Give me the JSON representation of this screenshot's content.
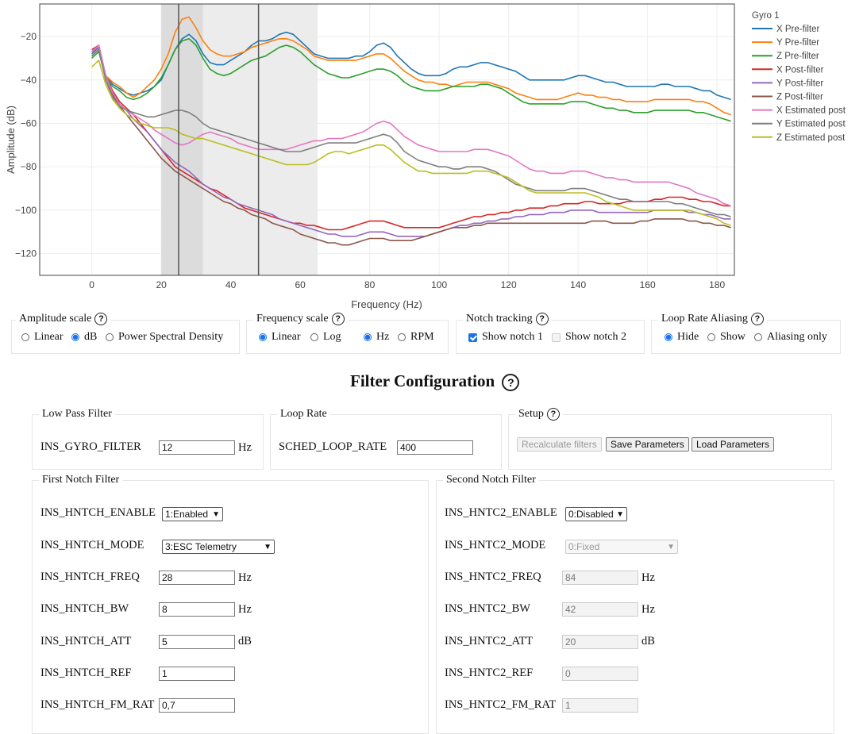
{
  "chart_data": {
    "type": "line",
    "xlabel": "Frequency (Hz)",
    "ylabel": "Amplitude (dB)",
    "xlim": [
      -15,
      185
    ],
    "ylim": [
      -130,
      -5
    ],
    "xticks": [
      0,
      20,
      40,
      60,
      80,
      100,
      120,
      140,
      160,
      180
    ],
    "yticks": [
      -120,
      -100,
      -80,
      -60,
      -40,
      -20
    ],
    "grid": true,
    "legend_title": "Gyro 1",
    "legend_position": "right",
    "shaded_bands": [
      {
        "x0": 20,
        "x1": 32,
        "shade": "dark"
      },
      {
        "x0": 32,
        "x1": 65,
        "shade": "light"
      }
    ],
    "vertical_lines": [
      25,
      48
    ],
    "x": [
      0,
      2,
      4,
      6,
      8,
      10,
      12,
      14,
      16,
      18,
      20,
      22,
      24,
      26,
      28,
      30,
      32,
      34,
      36,
      38,
      40,
      42,
      44,
      46,
      48,
      50,
      52,
      54,
      56,
      58,
      60,
      62,
      64,
      66,
      68,
      70,
      72,
      74,
      76,
      78,
      80,
      82,
      84,
      86,
      88,
      90,
      92,
      94,
      96,
      98,
      100,
      102,
      104,
      106,
      108,
      110,
      112,
      114,
      116,
      118,
      120,
      122,
      124,
      126,
      128,
      130,
      132,
      134,
      136,
      138,
      140,
      142,
      144,
      146,
      148,
      150,
      152,
      154,
      156,
      158,
      160,
      162,
      164,
      166,
      168,
      170,
      172,
      174,
      176,
      178,
      180,
      182,
      184
    ],
    "series": [
      {
        "name": "X Pre-filter",
        "color": "#1f77b4",
        "values": [
          -28,
          -25,
          -38,
          -42,
          -44,
          -46,
          -47,
          -46,
          -45,
          -43,
          -40,
          -33,
          -26,
          -21,
          -19,
          -22,
          -28,
          -32,
          -33,
          -33,
          -31,
          -29,
          -27,
          -24,
          -22,
          -22,
          -21,
          -19,
          -18,
          -19,
          -22,
          -25,
          -28,
          -29,
          -30,
          -30,
          -30,
          -30,
          -29,
          -29,
          -27,
          -24,
          -23,
          -25,
          -29,
          -32,
          -35,
          -37,
          -38,
          -38,
          -38,
          -37,
          -35,
          -34,
          -34,
          -33,
          -32,
          -32,
          -33,
          -34,
          -35,
          -36,
          -38,
          -40,
          -40,
          -40,
          -40,
          -40,
          -40,
          -39,
          -38,
          -38,
          -39,
          -40,
          -41,
          -41,
          -42,
          -43,
          -43,
          -43,
          -43,
          -43,
          -42,
          -42,
          -43,
          -43,
          -43,
          -44,
          -45,
          -45,
          -47,
          -48,
          -49
        ]
      },
      {
        "name": "Y Pre-filter",
        "color": "#ff7f0e",
        "values": [
          -29,
          -26,
          -38,
          -41,
          -43,
          -46,
          -48,
          -46,
          -43,
          -40,
          -35,
          -28,
          -18,
          -12,
          -11,
          -16,
          -22,
          -26,
          -28,
          -29,
          -29,
          -28,
          -27,
          -25,
          -24,
          -23,
          -22,
          -21,
          -21,
          -22,
          -24,
          -26,
          -29,
          -30,
          -31,
          -31,
          -31,
          -31,
          -31,
          -30,
          -29,
          -28,
          -28,
          -30,
          -33,
          -36,
          -38,
          -40,
          -41,
          -41,
          -42,
          -42,
          -43,
          -42,
          -41,
          -41,
          -41,
          -41,
          -42,
          -43,
          -44,
          -46,
          -47,
          -48,
          -49,
          -49,
          -49,
          -49,
          -48,
          -47,
          -46,
          -47,
          -47,
          -48,
          -48,
          -49,
          -49,
          -50,
          -50,
          -50,
          -50,
          -49,
          -49,
          -49,
          -49,
          -49,
          -49,
          -50,
          -50,
          -51,
          -53,
          -55,
          -56
        ]
      },
      {
        "name": "Z Pre-filter",
        "color": "#2ca02c",
        "values": [
          -30,
          -27,
          -39,
          -43,
          -45,
          -48,
          -49,
          -48,
          -46,
          -43,
          -39,
          -33,
          -26,
          -22,
          -21,
          -24,
          -30,
          -35,
          -37,
          -38,
          -37,
          -35,
          -33,
          -31,
          -30,
          -29,
          -27,
          -25,
          -24,
          -25,
          -27,
          -30,
          -33,
          -35,
          -37,
          -38,
          -39,
          -39,
          -38,
          -37,
          -36,
          -35,
          -35,
          -36,
          -38,
          -41,
          -43,
          -44,
          -45,
          -45,
          -45,
          -44,
          -43,
          -43,
          -43,
          -43,
          -42,
          -42,
          -43,
          -44,
          -46,
          -48,
          -50,
          -51,
          -51,
          -51,
          -51,
          -51,
          -51,
          -50,
          -50,
          -50,
          -51,
          -52,
          -53,
          -53,
          -54,
          -54,
          -55,
          -55,
          -55,
          -54,
          -54,
          -54,
          -54,
          -54,
          -54,
          -55,
          -55,
          -56,
          -57,
          -58,
          -59
        ]
      },
      {
        "name": "X Post-filter",
        "color": "#d62728",
        "values": [
          -26,
          -24,
          -38,
          -45,
          -50,
          -53,
          -56,
          -60,
          -64,
          -68,
          -72,
          -76,
          -80,
          -82,
          -84,
          -86,
          -88,
          -90,
          -91,
          -93,
          -95,
          -97,
          -99,
          -100,
          -101,
          -102,
          -103,
          -104,
          -105,
          -106,
          -106,
          -107,
          -107,
          -108,
          -109,
          -109,
          -109,
          -108,
          -107,
          -106,
          -105,
          -105,
          -105,
          -106,
          -107,
          -108,
          -108,
          -108,
          -108,
          -108,
          -108,
          -107,
          -106,
          -105,
          -104,
          -103,
          -103,
          -102,
          -102,
          -101,
          -101,
          -100,
          -100,
          -99,
          -99,
          -99,
          -98,
          -98,
          -97,
          -97,
          -97,
          -96,
          -96,
          -97,
          -97,
          -97,
          -97,
          -96,
          -96,
          -96,
          -96,
          -95,
          -95,
          -94,
          -94,
          -94,
          -95,
          -95,
          -96,
          -96,
          -97,
          -98,
          -98
        ]
      },
      {
        "name": "Y Post-filter",
        "color": "#9467bd",
        "values": [
          -27,
          -25,
          -38,
          -46,
          -51,
          -54,
          -58,
          -61,
          -64,
          -68,
          -72,
          -75,
          -78,
          -80,
          -82,
          -85,
          -88,
          -90,
          -92,
          -94,
          -95,
          -97,
          -98,
          -99,
          -100,
          -101,
          -102,
          -104,
          -105,
          -106,
          -107,
          -108,
          -109,
          -110,
          -111,
          -111,
          -112,
          -112,
          -112,
          -111,
          -110,
          -110,
          -110,
          -111,
          -112,
          -112,
          -112,
          -112,
          -112,
          -111,
          -110,
          -109,
          -108,
          -107,
          -107,
          -106,
          -106,
          -105,
          -105,
          -104,
          -104,
          -103,
          -103,
          -102,
          -102,
          -102,
          -101,
          -101,
          -101,
          -100,
          -100,
          -100,
          -100,
          -101,
          -101,
          -101,
          -101,
          -101,
          -101,
          -101,
          -101,
          -100,
          -100,
          -100,
          -100,
          -100,
          -101,
          -101,
          -102,
          -102,
          -103,
          -104,
          -104
        ]
      },
      {
        "name": "Z Post-filter",
        "color": "#8c564b",
        "values": [
          -27,
          -24,
          -38,
          -47,
          -52,
          -56,
          -60,
          -64,
          -68,
          -72,
          -76,
          -79,
          -82,
          -84,
          -86,
          -88,
          -90,
          -92,
          -94,
          -96,
          -97,
          -99,
          -100,
          -102,
          -103,
          -104,
          -106,
          -107,
          -108,
          -109,
          -111,
          -112,
          -113,
          -114,
          -115,
          -115,
          -116,
          -116,
          -115,
          -114,
          -113,
          -113,
          -113,
          -114,
          -114,
          -114,
          -114,
          -113,
          -112,
          -111,
          -110,
          -109,
          -108,
          -108,
          -108,
          -107,
          -107,
          -106,
          -106,
          -106,
          -106,
          -106,
          -106,
          -106,
          -106,
          -106,
          -106,
          -106,
          -106,
          -106,
          -106,
          -106,
          -105,
          -105,
          -105,
          -106,
          -106,
          -106,
          -106,
          -105,
          -105,
          -104,
          -104,
          -104,
          -104,
          -104,
          -105,
          -105,
          -106,
          -106,
          -107,
          -107,
          -108
        ]
      },
      {
        "name": "X Estimated post",
        "color": "#e377c2",
        "values": [
          -27,
          -24,
          -38,
          -46,
          -51,
          -54,
          -56,
          -58,
          -60,
          -63,
          -65,
          -67,
          -69,
          -70,
          -69,
          -67,
          -65,
          -64,
          -65,
          -66,
          -67,
          -69,
          -70,
          -71,
          -72,
          -72,
          -72,
          -72,
          -72,
          -71,
          -70,
          -69,
          -68,
          -68,
          -67,
          -67,
          -67,
          -66,
          -65,
          -64,
          -62,
          -60,
          -59,
          -60,
          -63,
          -66,
          -68,
          -70,
          -71,
          -72,
          -73,
          -73,
          -73,
          -73,
          -73,
          -72,
          -72,
          -72,
          -73,
          -74,
          -75,
          -77,
          -79,
          -81,
          -82,
          -82,
          -83,
          -83,
          -83,
          -82,
          -82,
          -82,
          -83,
          -84,
          -85,
          -85,
          -86,
          -86,
          -87,
          -87,
          -87,
          -87,
          -87,
          -87,
          -88,
          -89,
          -90,
          -92,
          -93,
          -94,
          -95,
          -97,
          -98
        ]
      },
      {
        "name": "Y Estimated post",
        "color": "#7f7f7f",
        "values": [
          -29,
          -26,
          -40,
          -48,
          -52,
          -54,
          -55,
          -56,
          -57,
          -57,
          -56,
          -55,
          -54,
          -54,
          -55,
          -57,
          -60,
          -62,
          -63,
          -64,
          -65,
          -66,
          -67,
          -68,
          -69,
          -70,
          -71,
          -72,
          -73,
          -73,
          -73,
          -72,
          -71,
          -70,
          -69,
          -69,
          -69,
          -69,
          -69,
          -68,
          -67,
          -66,
          -65,
          -66,
          -69,
          -73,
          -75,
          -77,
          -78,
          -79,
          -80,
          -80,
          -81,
          -81,
          -80,
          -80,
          -80,
          -81,
          -82,
          -84,
          -86,
          -88,
          -89,
          -90,
          -91,
          -91,
          -91,
          -91,
          -91,
          -90,
          -90,
          -90,
          -91,
          -92,
          -93,
          -94,
          -95,
          -95,
          -96,
          -96,
          -96,
          -96,
          -96,
          -96,
          -97,
          -97,
          -98,
          -99,
          -100,
          -101,
          -102,
          -102,
          -103
        ]
      },
      {
        "name": "Z Estimated post",
        "color": "#bcbd22",
        "values": [
          -34,
          -31,
          -42,
          -49,
          -53,
          -56,
          -58,
          -60,
          -61,
          -62,
          -62,
          -62,
          -63,
          -65,
          -66,
          -67,
          -67,
          -68,
          -69,
          -70,
          -71,
          -72,
          -73,
          -74,
          -75,
          -76,
          -77,
          -78,
          -79,
          -79,
          -79,
          -79,
          -78,
          -76,
          -74,
          -73,
          -73,
          -74,
          -73,
          -72,
          -71,
          -70,
          -70,
          -72,
          -75,
          -78,
          -80,
          -82,
          -82,
          -83,
          -83,
          -83,
          -83,
          -83,
          -83,
          -82,
          -82,
          -82,
          -83,
          -84,
          -85,
          -87,
          -89,
          -91,
          -92,
          -92,
          -92,
          -92,
          -92,
          -92,
          -92,
          -92,
          -93,
          -94,
          -96,
          -97,
          -98,
          -99,
          -100,
          -100,
          -100,
          -100,
          -100,
          -100,
          -100,
          -100,
          -100,
          -101,
          -102,
          -103,
          -104,
          -106,
          -107
        ]
      }
    ]
  },
  "amplitude_scale": {
    "title": "Amplitude scale",
    "options": [
      "Linear",
      "dB",
      "Power Spectral Density"
    ],
    "selected": 1
  },
  "frequency_scale": {
    "title": "Frequency scale",
    "options": [
      "Linear",
      "Log"
    ],
    "selected": 0,
    "unit_options": [
      "Hz",
      "RPM"
    ],
    "unit_selected": 0
  },
  "notch_tracking": {
    "title": "Notch tracking",
    "show_notch1": "Show notch 1",
    "show_notch2": "Show notch 2"
  },
  "loop_rate_aliasing": {
    "title": "Loop Rate Aliasing",
    "options": [
      "Hide",
      "Show",
      "Aliasing only"
    ],
    "selected": 0
  },
  "filter_config": {
    "title": "Filter Configuration"
  },
  "low_pass": {
    "title": "Low Pass Filter",
    "param": "INS_GYRO_FILTER",
    "value": "12",
    "unit": "Hz"
  },
  "loop_rate": {
    "title": "Loop Rate",
    "param": "SCHED_LOOP_RATE",
    "value": "400"
  },
  "setup": {
    "title": "Setup",
    "recalc": "Recalculate filters",
    "save": "Save Parameters",
    "load": "Load Parameters"
  },
  "first_notch": {
    "title": "First Notch Filter",
    "enable": {
      "label": "INS_HNTCH_ENABLE",
      "value": "1:Enabled"
    },
    "mode": {
      "label": "INS_HNTCH_MODE",
      "value": "3:ESC Telemetry"
    },
    "freq": {
      "label": "INS_HNTCH_FREQ",
      "value": "28",
      "unit": "Hz"
    },
    "bw": {
      "label": "INS_HNTCH_BW",
      "value": "8",
      "unit": "Hz"
    },
    "att": {
      "label": "INS_HNTCH_ATT",
      "value": "5",
      "unit": "dB"
    },
    "ref": {
      "label": "INS_HNTCH_REF",
      "value": "1"
    },
    "fm_rat": {
      "label": "INS_HNTCH_FM_RAT",
      "value": "0,7"
    }
  },
  "second_notch": {
    "title": "Second Notch Filter",
    "enable": {
      "label": "INS_HNTC2_ENABLE",
      "value": "0:Disabled"
    },
    "mode": {
      "label": "INS_HNTC2_MODE",
      "value": "0:Fixed"
    },
    "freq": {
      "label": "INS_HNTC2_FREQ",
      "value": "84",
      "unit": "Hz"
    },
    "bw": {
      "label": "INS_HNTC2_BW",
      "value": "42",
      "unit": "Hz"
    },
    "att": {
      "label": "INS_HNTC2_ATT",
      "value": "20",
      "unit": "dB"
    },
    "ref": {
      "label": "INS_HNTC2_REF",
      "value": "0"
    },
    "fm_rat": {
      "label": "INS_HNTC2_FM_RAT",
      "value": "1"
    }
  }
}
